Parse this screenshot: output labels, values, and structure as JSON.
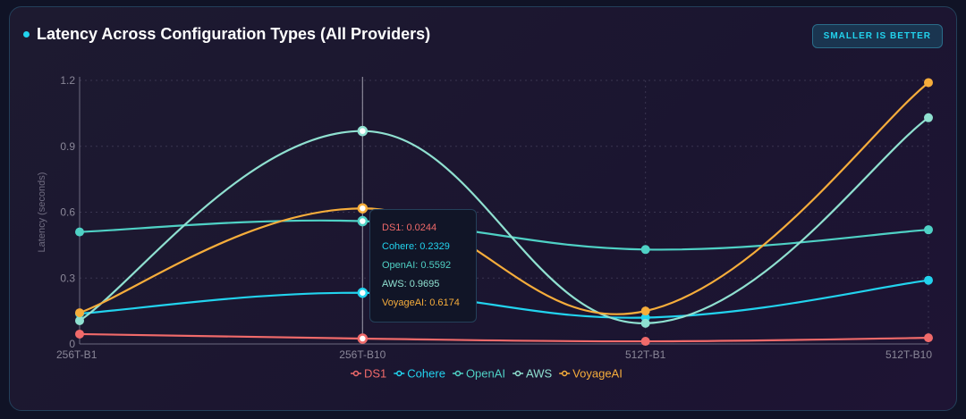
{
  "title": "Latency Across Configuration Types (All Providers)",
  "badge": "SMALLER IS BETTER",
  "tooltip": {
    "rows": [
      "DS1: 0.0244",
      "Cohere: 0.2329",
      "OpenAI: 0.5592",
      "AWS: 0.9695",
      "VoyageAI: 0.6174"
    ]
  },
  "chart_data": {
    "type": "line",
    "title": "Latency Across Configuration Types (All Providers)",
    "xlabel": "",
    "ylabel": "Latency (seconds)",
    "categories": [
      "256T-B1",
      "256T-B10",
      "512T-B1",
      "512T-B10"
    ],
    "ylim": [
      0,
      1.2
    ],
    "yticks": [
      "0",
      "0.3",
      "0.6",
      "0.9",
      "1.2"
    ],
    "grid": true,
    "legend": "bottom",
    "series": [
      {
        "name": "DS1",
        "color": "#f06a6a",
        "values": [
          0.045,
          0.0244,
          0.012,
          0.028
        ]
      },
      {
        "name": "Cohere",
        "color": "#22d3ee",
        "values": [
          0.138,
          0.2329,
          0.12,
          0.29
        ]
      },
      {
        "name": "OpenAI",
        "color": "#4fd1c5",
        "values": [
          0.51,
          0.5592,
          0.43,
          0.52
        ]
      },
      {
        "name": "AWS",
        "color": "#8fe0d0",
        "values": [
          0.106,
          0.9695,
          0.094,
          1.03
        ]
      },
      {
        "name": "VoyageAI",
        "color": "#f6ad3b",
        "values": [
          0.142,
          0.6174,
          0.15,
          1.19
        ]
      }
    ],
    "hover_category": "256T-B10"
  }
}
